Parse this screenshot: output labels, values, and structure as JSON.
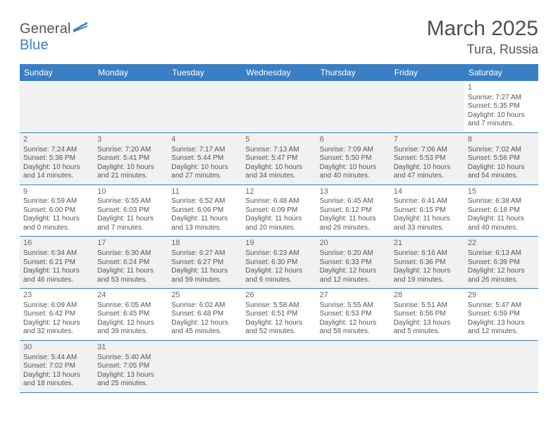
{
  "logo": {
    "part1": "General",
    "part2": "Blue"
  },
  "title": "March 2025",
  "location": "Tura, Russia",
  "weekdays": [
    "Sunday",
    "Monday",
    "Tuesday",
    "Wednesday",
    "Thursday",
    "Friday",
    "Saturday"
  ],
  "colors": {
    "header_bg": "#3a7fc4",
    "header_text": "#ffffff",
    "shade_bg": "#f1f1f1",
    "border": "#3a7fc4",
    "text": "#555555"
  },
  "days": [
    {
      "n": "1",
      "sunrise": "Sunrise: 7:27 AM",
      "sunset": "Sunset: 5:35 PM",
      "dl1": "Daylight: 10 hours",
      "dl2": "and 7 minutes."
    },
    {
      "n": "2",
      "sunrise": "Sunrise: 7:24 AM",
      "sunset": "Sunset: 5:38 PM",
      "dl1": "Daylight: 10 hours",
      "dl2": "and 14 minutes."
    },
    {
      "n": "3",
      "sunrise": "Sunrise: 7:20 AM",
      "sunset": "Sunset: 5:41 PM",
      "dl1": "Daylight: 10 hours",
      "dl2": "and 21 minutes."
    },
    {
      "n": "4",
      "sunrise": "Sunrise: 7:17 AM",
      "sunset": "Sunset: 5:44 PM",
      "dl1": "Daylight: 10 hours",
      "dl2": "and 27 minutes."
    },
    {
      "n": "5",
      "sunrise": "Sunrise: 7:13 AM",
      "sunset": "Sunset: 5:47 PM",
      "dl1": "Daylight: 10 hours",
      "dl2": "and 34 minutes."
    },
    {
      "n": "6",
      "sunrise": "Sunrise: 7:09 AM",
      "sunset": "Sunset: 5:50 PM",
      "dl1": "Daylight: 10 hours",
      "dl2": "and 40 minutes."
    },
    {
      "n": "7",
      "sunrise": "Sunrise: 7:06 AM",
      "sunset": "Sunset: 5:53 PM",
      "dl1": "Daylight: 10 hours",
      "dl2": "and 47 minutes."
    },
    {
      "n": "8",
      "sunrise": "Sunrise: 7:02 AM",
      "sunset": "Sunset: 5:56 PM",
      "dl1": "Daylight: 10 hours",
      "dl2": "and 54 minutes."
    },
    {
      "n": "9",
      "sunrise": "Sunrise: 6:59 AM",
      "sunset": "Sunset: 6:00 PM",
      "dl1": "Daylight: 11 hours",
      "dl2": "and 0 minutes."
    },
    {
      "n": "10",
      "sunrise": "Sunrise: 6:55 AM",
      "sunset": "Sunset: 6:03 PM",
      "dl1": "Daylight: 11 hours",
      "dl2": "and 7 minutes."
    },
    {
      "n": "11",
      "sunrise": "Sunrise: 6:52 AM",
      "sunset": "Sunset: 6:06 PM",
      "dl1": "Daylight: 11 hours",
      "dl2": "and 13 minutes."
    },
    {
      "n": "12",
      "sunrise": "Sunrise: 6:48 AM",
      "sunset": "Sunset: 6:09 PM",
      "dl1": "Daylight: 11 hours",
      "dl2": "and 20 minutes."
    },
    {
      "n": "13",
      "sunrise": "Sunrise: 6:45 AM",
      "sunset": "Sunset: 6:12 PM",
      "dl1": "Daylight: 11 hours",
      "dl2": "and 26 minutes."
    },
    {
      "n": "14",
      "sunrise": "Sunrise: 6:41 AM",
      "sunset": "Sunset: 6:15 PM",
      "dl1": "Daylight: 11 hours",
      "dl2": "and 33 minutes."
    },
    {
      "n": "15",
      "sunrise": "Sunrise: 6:38 AM",
      "sunset": "Sunset: 6:18 PM",
      "dl1": "Daylight: 11 hours",
      "dl2": "and 40 minutes."
    },
    {
      "n": "16",
      "sunrise": "Sunrise: 6:34 AM",
      "sunset": "Sunset: 6:21 PM",
      "dl1": "Daylight: 11 hours",
      "dl2": "and 46 minutes."
    },
    {
      "n": "17",
      "sunrise": "Sunrise: 6:30 AM",
      "sunset": "Sunset: 6:24 PM",
      "dl1": "Daylight: 11 hours",
      "dl2": "and 53 minutes."
    },
    {
      "n": "18",
      "sunrise": "Sunrise: 6:27 AM",
      "sunset": "Sunset: 6:27 PM",
      "dl1": "Daylight: 11 hours",
      "dl2": "and 59 minutes."
    },
    {
      "n": "19",
      "sunrise": "Sunrise: 6:23 AM",
      "sunset": "Sunset: 6:30 PM",
      "dl1": "Daylight: 12 hours",
      "dl2": "and 6 minutes."
    },
    {
      "n": "20",
      "sunrise": "Sunrise: 6:20 AM",
      "sunset": "Sunset: 6:33 PM",
      "dl1": "Daylight: 12 hours",
      "dl2": "and 12 minutes."
    },
    {
      "n": "21",
      "sunrise": "Sunrise: 6:16 AM",
      "sunset": "Sunset: 6:36 PM",
      "dl1": "Daylight: 12 hours",
      "dl2": "and 19 minutes."
    },
    {
      "n": "22",
      "sunrise": "Sunrise: 6:13 AM",
      "sunset": "Sunset: 6:39 PM",
      "dl1": "Daylight: 12 hours",
      "dl2": "and 26 minutes."
    },
    {
      "n": "23",
      "sunrise": "Sunrise: 6:09 AM",
      "sunset": "Sunset: 6:42 PM",
      "dl1": "Daylight: 12 hours",
      "dl2": "and 32 minutes."
    },
    {
      "n": "24",
      "sunrise": "Sunrise: 6:05 AM",
      "sunset": "Sunset: 6:45 PM",
      "dl1": "Daylight: 12 hours",
      "dl2": "and 39 minutes."
    },
    {
      "n": "25",
      "sunrise": "Sunrise: 6:02 AM",
      "sunset": "Sunset: 6:48 PM",
      "dl1": "Daylight: 12 hours",
      "dl2": "and 45 minutes."
    },
    {
      "n": "26",
      "sunrise": "Sunrise: 5:58 AM",
      "sunset": "Sunset: 6:51 PM",
      "dl1": "Daylight: 12 hours",
      "dl2": "and 52 minutes."
    },
    {
      "n": "27",
      "sunrise": "Sunrise: 5:55 AM",
      "sunset": "Sunset: 6:53 PM",
      "dl1": "Daylight: 12 hours",
      "dl2": "and 58 minutes."
    },
    {
      "n": "28",
      "sunrise": "Sunrise: 5:51 AM",
      "sunset": "Sunset: 6:56 PM",
      "dl1": "Daylight: 13 hours",
      "dl2": "and 5 minutes."
    },
    {
      "n": "29",
      "sunrise": "Sunrise: 5:47 AM",
      "sunset": "Sunset: 6:59 PM",
      "dl1": "Daylight: 13 hours",
      "dl2": "and 12 minutes."
    },
    {
      "n": "30",
      "sunrise": "Sunrise: 5:44 AM",
      "sunset": "Sunset: 7:02 PM",
      "dl1": "Daylight: 13 hours",
      "dl2": "and 18 minutes."
    },
    {
      "n": "31",
      "sunrise": "Sunrise: 5:40 AM",
      "sunset": "Sunset: 7:05 PM",
      "dl1": "Daylight: 13 hours",
      "dl2": "and 25 minutes."
    }
  ],
  "layout": {
    "first_weekday_index": 6,
    "rows": 6,
    "cols": 7
  }
}
